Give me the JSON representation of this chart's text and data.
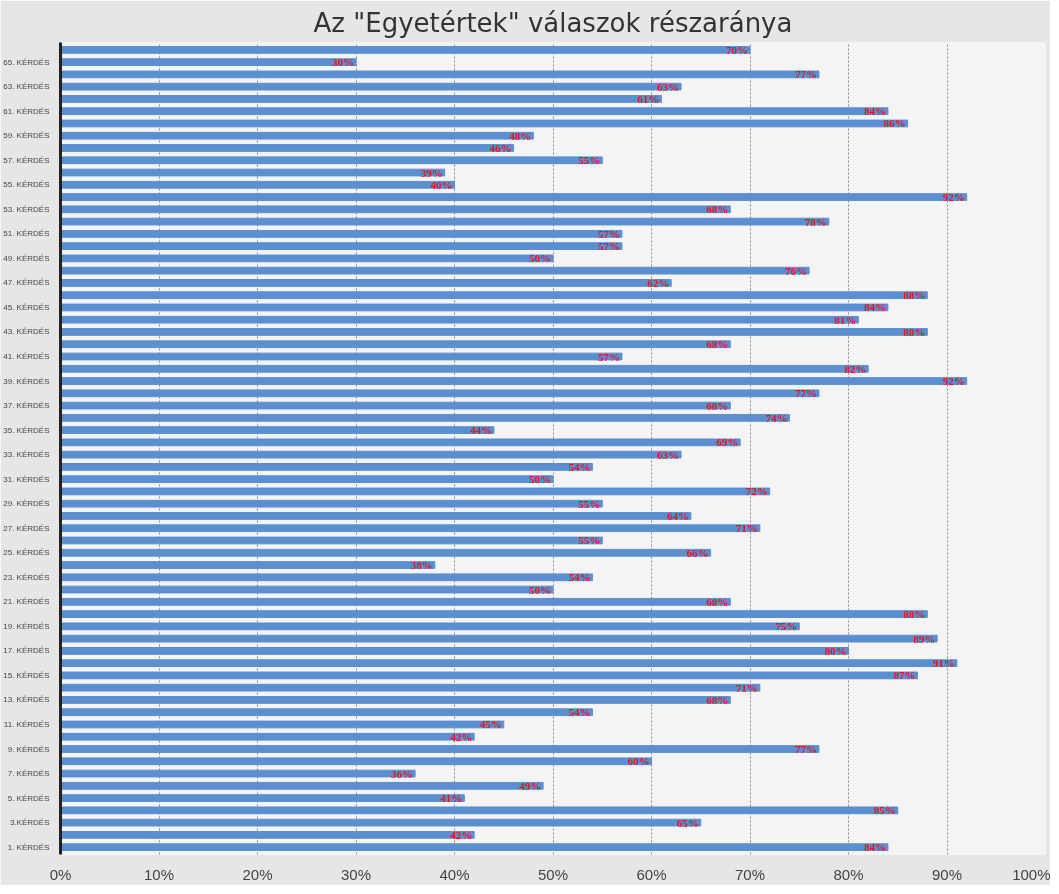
{
  "chart_data": {
    "type": "bar",
    "orientation": "horizontal",
    "title": "Az \"Egyetértek\" válaszok részaránya",
    "categories": [
      null,
      "65. KÉRDÉS",
      null,
      "63. KÉRDÉS",
      null,
      "61. KÉRDÉS",
      null,
      "59. KÉRDÉS",
      null,
      "57. KÉRDÉS",
      null,
      "55. KÉRDÉS",
      null,
      "53. KÉRDÉS",
      null,
      "51. KÉRDÉS",
      null,
      "49. KÉRDÉS",
      null,
      "47. KÉRDÉS",
      null,
      "45. KÉRDÉS",
      null,
      "43. KÉRDÉS",
      null,
      "41. KÉRDÉS",
      null,
      "39. KÉRDÉS",
      null,
      "37. KÉRDÉS",
      null,
      "35. KÉRDÉS",
      null,
      "33. KÉRDÉS",
      null,
      "31. KÉRDÉS",
      null,
      "29. KÉRDÉS",
      null,
      "27. KÉRDÉS",
      null,
      "25. KÉRDÉS",
      null,
      "23. KÉRDÉS",
      null,
      "21. KÉRDÉS",
      null,
      "19. KÉRDÉS",
      null,
      "17. KÉRDÉS",
      null,
      "15. KÉRDÉS",
      null,
      "13. KÉRDÉS",
      null,
      "11. KÉRDÉS",
      null,
      "9. KÉRDÉS",
      null,
      "7. KÉRDÉS",
      null,
      "5. KÉRDÉS",
      null,
      "3.KÉRDÉS",
      null,
      "1. KÉRDÉS"
    ],
    "values": [
      70,
      30,
      77,
      63,
      61,
      84,
      86,
      48,
      46,
      55,
      39,
      40,
      92,
      68,
      78,
      57,
      57,
      50,
      76,
      62,
      88,
      84,
      81,
      88,
      68,
      57,
      82,
      92,
      77,
      68,
      74,
      44,
      69,
      63,
      54,
      50,
      72,
      55,
      64,
      71,
      55,
      66,
      38,
      54,
      50,
      68,
      88,
      75,
      89,
      80,
      91,
      87,
      71,
      68,
      54,
      45,
      42,
      77,
      60,
      36,
      49,
      41,
      85,
      65,
      42,
      84
    ],
    "value_labels": [
      "70%",
      "30%",
      "77%",
      "63%",
      "61%",
      "84%",
      "86%",
      "48%",
      "46%",
      "55%",
      "39%",
      "40%",
      "92%",
      "68%",
      "78%",
      "57%",
      "57%",
      "50%",
      "76%",
      "62%",
      "88%",
      "84%",
      "81%",
      "88%",
      "68%",
      "57%",
      "82%",
      "92%",
      "77%",
      "68%",
      "74%",
      "44%",
      "69%",
      "63%",
      "54%",
      "50%",
      "72%",
      "55%",
      "64%",
      "71%",
      "55%",
      "66%",
      "38%",
      "54%",
      "50%",
      "68%",
      "88%",
      "75%",
      "89%",
      "80%",
      "91%",
      "87%",
      "71%",
      "68%",
      "54%",
      "45%",
      "42%",
      "77%",
      "60%",
      "36%",
      "49%",
      "41%",
      "85%",
      "65%",
      "42%",
      "84%"
    ],
    "color": "#5b8fd0",
    "xlim": [
      0,
      100
    ],
    "xticks": [
      {
        "value": 0,
        "label": "0%"
      },
      {
        "value": 10,
        "label": "10%"
      },
      {
        "value": 20,
        "label": "20%"
      },
      {
        "value": 30,
        "label": "30%"
      },
      {
        "value": 40,
        "label": "40%"
      },
      {
        "value": 50,
        "label": "50%"
      },
      {
        "value": 60,
        "label": "60%"
      },
      {
        "value": 70,
        "label": "70%"
      },
      {
        "value": 80,
        "label": "80%"
      },
      {
        "value": 90,
        "label": "90%"
      },
      {
        "value": 100,
        "label": "100%"
      }
    ],
    "grid": "x"
  }
}
